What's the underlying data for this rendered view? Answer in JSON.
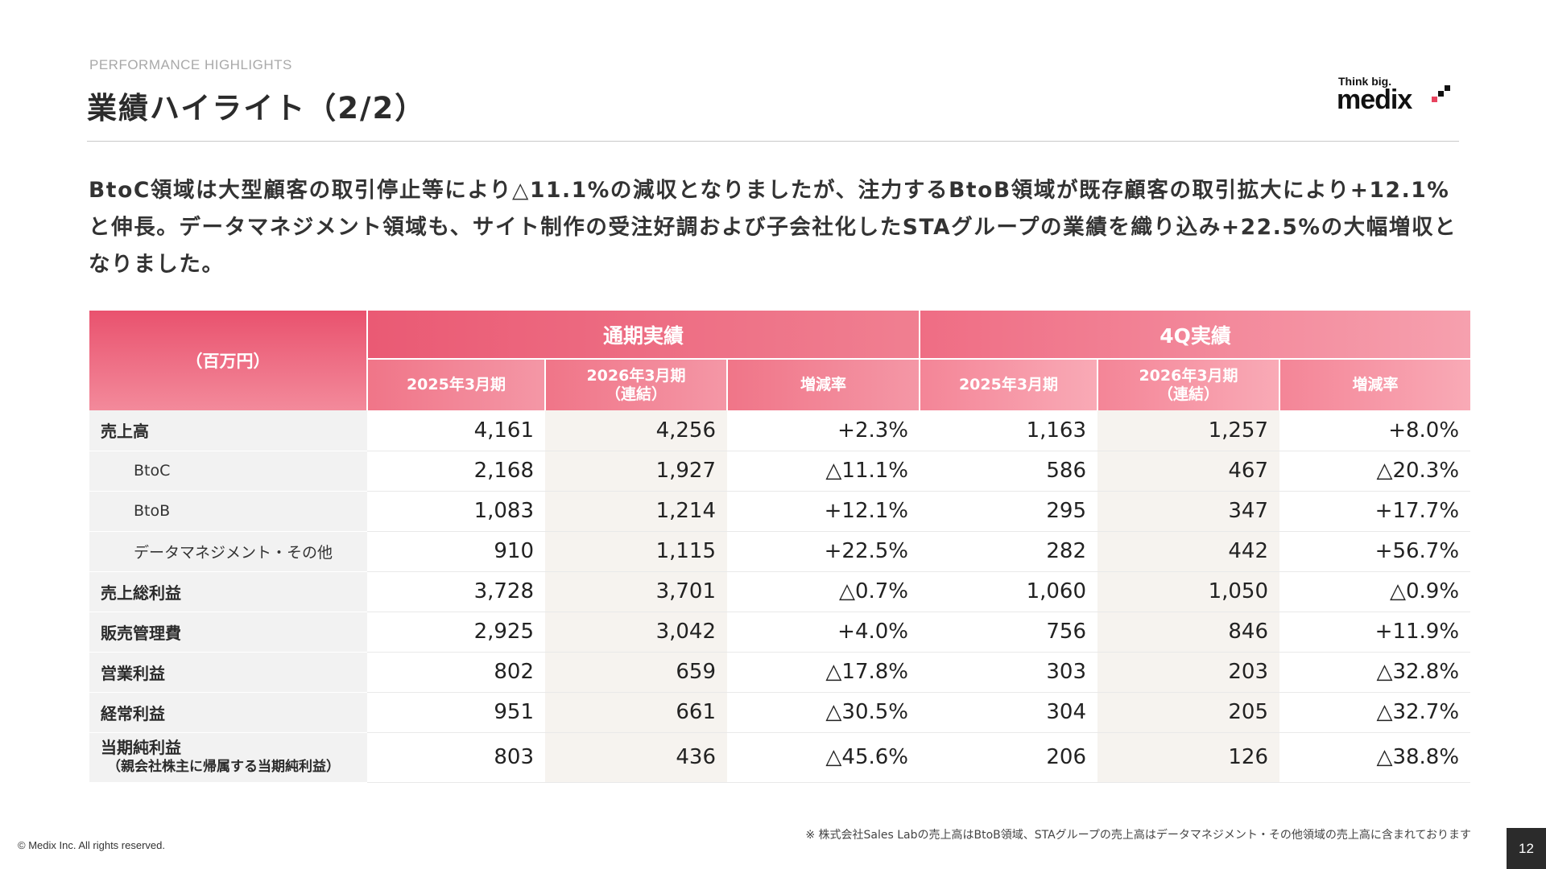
{
  "header": {
    "eyebrow": "PERFORMANCE HIGHLIGHTS",
    "title": "業績ハイライト（2/2）"
  },
  "logo": {
    "tagline": "Think big.",
    "wordmark": "medix"
  },
  "summary": "BtoC領域は大型顧客の取引停止等により△11.1%の減収となりましたが、注力するBtoB領域が既存顧客の取引拡大により+12.1%と伸長。データマネジメント領域も、サイト制作の受注好調および子会社化したSTAグループの業績を織り込み+22.5%の大幅増収となりました。",
  "table": {
    "unit_label": "（百万円）",
    "groups": [
      "通期実績",
      "4Q実績"
    ],
    "subheaders": [
      {
        "line1": "2025年3月期",
        "line2": ""
      },
      {
        "line1": "2026年3月期",
        "line2": "（連結）"
      },
      {
        "line1": "増減率",
        "line2": ""
      },
      {
        "line1": "2025年3月期",
        "line2": ""
      },
      {
        "line1": "2026年3月期",
        "line2": "（連結）"
      },
      {
        "line1": "増減率",
        "line2": ""
      }
    ],
    "rows": [
      {
        "label": "売上高",
        "note": "",
        "values": [
          "4,161",
          "4,256",
          "+2.3%",
          "1,163",
          "1,257",
          "+8.0%"
        ]
      },
      {
        "label": "BtoC",
        "note": "",
        "values": [
          "2,168",
          "1,927",
          "△11.1%",
          "586",
          "467",
          "△20.3%"
        ]
      },
      {
        "label": "BtoB",
        "note": "",
        "values": [
          "1,083",
          "1,214",
          "+12.1%",
          "295",
          "347",
          "+17.7%"
        ]
      },
      {
        "label": "データマネジメント・その他",
        "note": "",
        "values": [
          "910",
          "1,115",
          "+22.5%",
          "282",
          "442",
          "+56.7%"
        ]
      },
      {
        "label": "売上総利益",
        "note": "",
        "values": [
          "3,728",
          "3,701",
          "△0.7%",
          "1,060",
          "1,050",
          "△0.9%"
        ]
      },
      {
        "label": "販売管理費",
        "note": "",
        "values": [
          "2,925",
          "3,042",
          "+4.0%",
          "756",
          "846",
          "+11.9%"
        ]
      },
      {
        "label": "営業利益",
        "note": "",
        "values": [
          "802",
          "659",
          "△17.8%",
          "303",
          "203",
          "△32.8%"
        ]
      },
      {
        "label": "経常利益",
        "note": "",
        "values": [
          "951",
          "661",
          "△30.5%",
          "304",
          "205",
          "△32.7%"
        ]
      },
      {
        "label": "当期純利益",
        "note": "（親会社株主に帰属する当期純利益）",
        "values": [
          "803",
          "436",
          "△45.6%",
          "206",
          "126",
          "△38.8%"
        ]
      }
    ]
  },
  "footnote": "※ 株式会社Sales Labの売上高はBtoB領域、STAグループの売上高はデータマネジメント・その他領域の売上高に含まれております",
  "copyright": "© Medix Inc. All rights reserved.",
  "page_number": "12",
  "colors": {
    "header_pink": "#ea5a74",
    "header_light_pink": "#f6a0ae",
    "label_bg": "#f2f2f2",
    "shade_bg": "#f6f3ef"
  }
}
